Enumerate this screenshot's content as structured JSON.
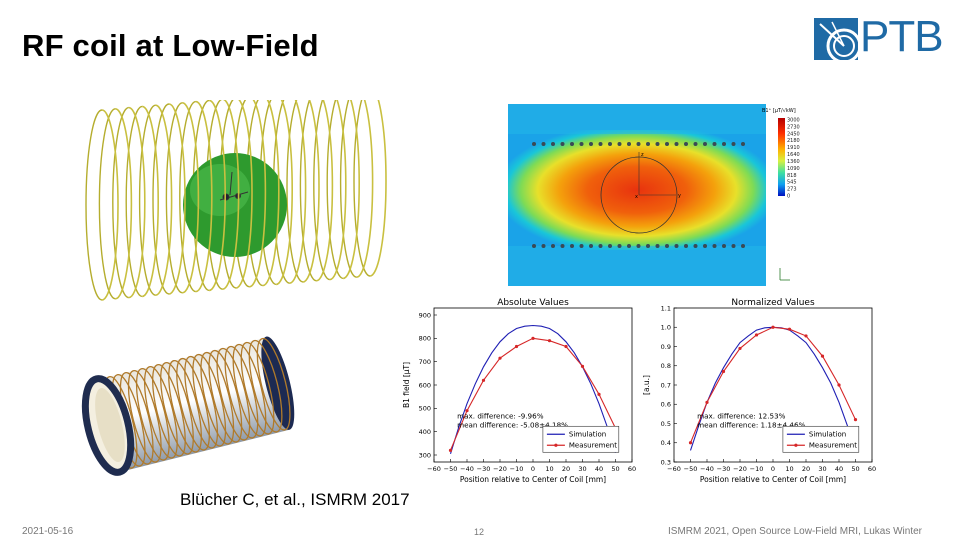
{
  "slide": {
    "title": "RF coil at Low-Field",
    "citation": "Blücher C, et al., ISMRM 2017",
    "footer_date": "2021-05-16",
    "page_number": "12",
    "footer_conference": "ISMRM  2021, Open Source Low-Field MRI, Lukas Winter"
  },
  "logo": {
    "text": "PTB",
    "color": "#1f6aa5"
  },
  "field_map": {
    "colorbar_title": "B1⁺ [µT/√kW]",
    "colorbar_ticks": [
      "3000",
      "2730",
      "2450",
      "2180",
      "1910",
      "1640",
      "1360",
      "1090",
      "818",
      "545",
      "273",
      "0"
    ],
    "axis_z": "z",
    "axis_y": "y",
    "axis_x": "x"
  },
  "colors": {
    "simulation": "#1f1fb4",
    "measurement": "#d62728",
    "coil_wire": "#b5ad2e",
    "sphere": "#2e9a2e"
  },
  "chart_data": [
    {
      "type": "line",
      "title": "Absolute Values",
      "xlabel": "Position relative to Center of Coil [mm]",
      "ylabel": "B1 field [µT]",
      "xlim": [
        -60,
        60
      ],
      "ylim": [
        270,
        930
      ],
      "xticks": [
        -60,
        -50,
        -40,
        -30,
        -20,
        -10,
        0,
        10,
        20,
        30,
        40,
        50,
        60
      ],
      "yticks": [
        300,
        400,
        500,
        600,
        700,
        800,
        900
      ],
      "annotation": [
        "max. difference: -9.96%",
        "mean difference: -5.08±4.18%"
      ],
      "legend": [
        "Simulation",
        "Measurement"
      ],
      "series": [
        {
          "name": "Simulation",
          "x": [
            -50,
            -45,
            -40,
            -35,
            -30,
            -25,
            -20,
            -15,
            -10,
            -5,
            0,
            5,
            10,
            15,
            20,
            25,
            30,
            35,
            40,
            45,
            50
          ],
          "y": [
            305,
            420,
            520,
            605,
            678,
            738,
            785,
            820,
            842,
            852,
            855,
            852,
            842,
            820,
            785,
            738,
            678,
            605,
            520,
            420,
            310
          ]
        },
        {
          "name": "Measurement",
          "x": [
            -50,
            -40,
            -30,
            -20,
            -10,
            0,
            10,
            20,
            30,
            40,
            50
          ],
          "y": [
            320,
            490,
            620,
            715,
            765,
            800,
            790,
            765,
            680,
            560,
            415
          ]
        }
      ]
    },
    {
      "type": "line",
      "title": "Normalized Values",
      "xlabel": "Position relative to Center of Coil [mm]",
      "ylabel": "[a.u.]",
      "xlim": [
        -60,
        60
      ],
      "ylim": [
        0.3,
        1.1
      ],
      "xticks": [
        -60,
        -50,
        -40,
        -30,
        -20,
        -10,
        0,
        10,
        20,
        30,
        40,
        50,
        60
      ],
      "yticks": [
        0.3,
        0.4,
        0.5,
        0.6,
        0.7,
        0.8,
        0.9,
        1.0,
        1.1
      ],
      "ytick_labels": [
        "0.3",
        "0.4",
        "0.5",
        "0.6",
        "0.7",
        "0.8",
        "0.9",
        "1.0",
        "1.1"
      ],
      "annotation": [
        "max. difference: 12.53%",
        "mean difference: 1.18±4.46%"
      ],
      "legend": [
        "Simulation",
        "Measurement"
      ],
      "series": [
        {
          "name": "Simulation",
          "x": [
            -50,
            -45,
            -40,
            -35,
            -30,
            -25,
            -20,
            -15,
            -10,
            -5,
            0,
            5,
            10,
            15,
            20,
            25,
            30,
            35,
            40,
            45,
            50
          ],
          "y": [
            0.36,
            0.49,
            0.61,
            0.71,
            0.79,
            0.86,
            0.92,
            0.955,
            0.985,
            0.997,
            1.0,
            0.997,
            0.985,
            0.955,
            0.92,
            0.86,
            0.79,
            0.71,
            0.61,
            0.49,
            0.37
          ]
        },
        {
          "name": "Measurement",
          "x": [
            -50,
            -40,
            -30,
            -20,
            -10,
            0,
            10,
            20,
            30,
            40,
            50
          ],
          "y": [
            0.4,
            0.61,
            0.77,
            0.89,
            0.96,
            1.0,
            0.99,
            0.955,
            0.85,
            0.7,
            0.52
          ]
        }
      ]
    }
  ]
}
